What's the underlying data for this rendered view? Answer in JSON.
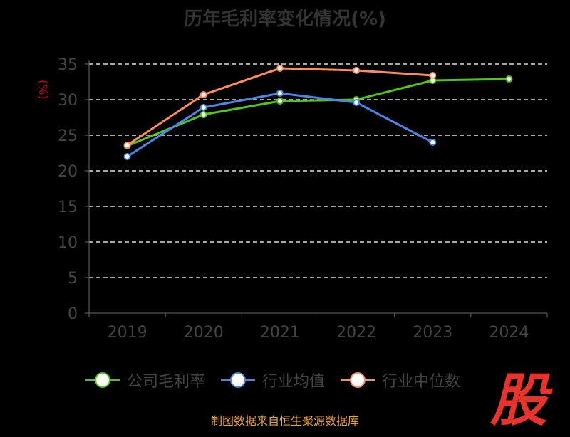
{
  "chart_data": {
    "type": "line",
    "title": "历年毛利率变化情况(%)",
    "ylabel": "(%)",
    "xlabel": "",
    "categories": [
      "2019",
      "2020",
      "2021",
      "2022",
      "2023",
      "2024"
    ],
    "ylim": [
      0,
      35
    ],
    "yticks": [
      0,
      5,
      10,
      15,
      20,
      25,
      30,
      35
    ],
    "grid": true,
    "legend": "bottom",
    "series": [
      {
        "name": "公司毛利率",
        "color": "#52c41a",
        "values": [
          23.5,
          27.9,
          29.8,
          30.0,
          32.7,
          32.9
        ]
      },
      {
        "name": "行业均值",
        "color": "#4a86e8",
        "values": [
          22.0,
          28.9,
          30.9,
          29.6,
          24.0,
          null
        ]
      },
      {
        "name": "行业中位数",
        "color": "#ff8c5a",
        "values": [
          23.6,
          30.7,
          34.4,
          34.1,
          33.4,
          null
        ]
      }
    ]
  },
  "source": "制图数据来自恒生聚源数据库",
  "logo_text": "股"
}
